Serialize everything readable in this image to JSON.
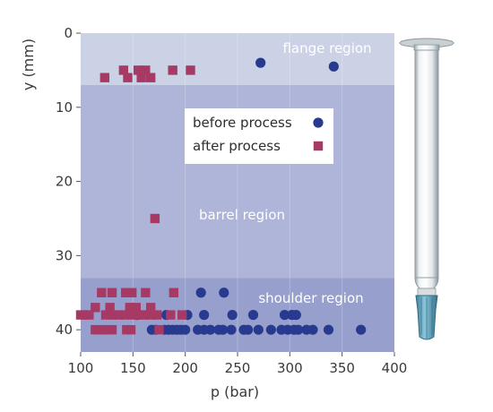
{
  "chart_data": {
    "type": "scatter",
    "xlabel": "p (bar)",
    "ylabel": "y (mm)",
    "xlim": [
      100,
      400
    ],
    "ylim": [
      0,
      43
    ],
    "y_inverted": true,
    "xticks": [
      100,
      150,
      200,
      250,
      300,
      350,
      400
    ],
    "yticks": [
      0,
      10,
      20,
      30,
      40
    ],
    "legend_position": "center-upper",
    "regions": [
      {
        "label": "flange region",
        "y_from": 0,
        "y_to": 7,
        "color": "#ccd2e6"
      },
      {
        "label": "barrel region",
        "y_from": 7,
        "y_to": 33,
        "color": "#aeb5d8"
      },
      {
        "label": "shoulder region",
        "y_from": 33,
        "y_to": 43,
        "color": "#979fcd"
      }
    ],
    "series": [
      {
        "name": "before process",
        "marker": "circle",
        "color": "#283a8f",
        "points": [
          [
            272,
            4
          ],
          [
            342,
            4.5
          ],
          [
            215,
            35
          ],
          [
            237,
            35
          ],
          [
            154,
            38
          ],
          [
            182,
            38
          ],
          [
            202,
            38
          ],
          [
            218,
            38
          ],
          [
            245,
            38
          ],
          [
            265,
            38
          ],
          [
            295,
            38
          ],
          [
            302,
            38
          ],
          [
            306,
            38
          ],
          [
            168,
            40
          ],
          [
            172,
            40
          ],
          [
            180,
            40
          ],
          [
            184,
            40
          ],
          [
            188,
            40
          ],
          [
            192,
            40
          ],
          [
            196,
            40
          ],
          [
            200,
            40
          ],
          [
            212,
            40
          ],
          [
            218,
            40
          ],
          [
            224,
            40
          ],
          [
            232,
            40
          ],
          [
            236,
            40
          ],
          [
            244,
            40
          ],
          [
            256,
            40
          ],
          [
            260,
            40
          ],
          [
            270,
            40
          ],
          [
            282,
            40
          ],
          [
            292,
            40
          ],
          [
            298,
            40
          ],
          [
            304,
            40
          ],
          [
            308,
            40
          ],
          [
            316,
            40
          ],
          [
            322,
            40
          ],
          [
            337,
            40
          ],
          [
            368,
            40
          ]
        ]
      },
      {
        "name": "after process",
        "marker": "square",
        "color": "#a63a64",
        "points": [
          [
            123,
            6
          ],
          [
            141,
            5
          ],
          [
            145,
            6
          ],
          [
            155,
            5
          ],
          [
            158,
            6
          ],
          [
            162,
            5
          ],
          [
            167,
            6
          ],
          [
            188,
            5
          ],
          [
            205,
            5
          ],
          [
            171,
            25
          ],
          [
            120,
            35
          ],
          [
            130,
            35
          ],
          [
            143,
            35
          ],
          [
            149,
            35
          ],
          [
            162,
            35
          ],
          [
            189,
            35
          ],
          [
            114,
            37
          ],
          [
            128,
            37
          ],
          [
            147,
            37
          ],
          [
            153,
            37
          ],
          [
            167,
            37
          ],
          [
            100,
            38
          ],
          [
            104,
            38
          ],
          [
            108,
            38
          ],
          [
            124,
            38
          ],
          [
            130,
            38
          ],
          [
            136,
            38
          ],
          [
            142,
            38
          ],
          [
            149,
            38
          ],
          [
            155,
            38
          ],
          [
            161,
            38
          ],
          [
            167,
            38
          ],
          [
            173,
            38
          ],
          [
            186,
            38
          ],
          [
            197,
            38
          ],
          [
            114,
            40
          ],
          [
            118,
            40
          ],
          [
            122,
            40
          ],
          [
            126,
            40
          ],
          [
            130,
            40
          ],
          [
            144,
            40
          ],
          [
            148,
            40
          ],
          [
            175,
            40
          ]
        ]
      }
    ]
  }
}
